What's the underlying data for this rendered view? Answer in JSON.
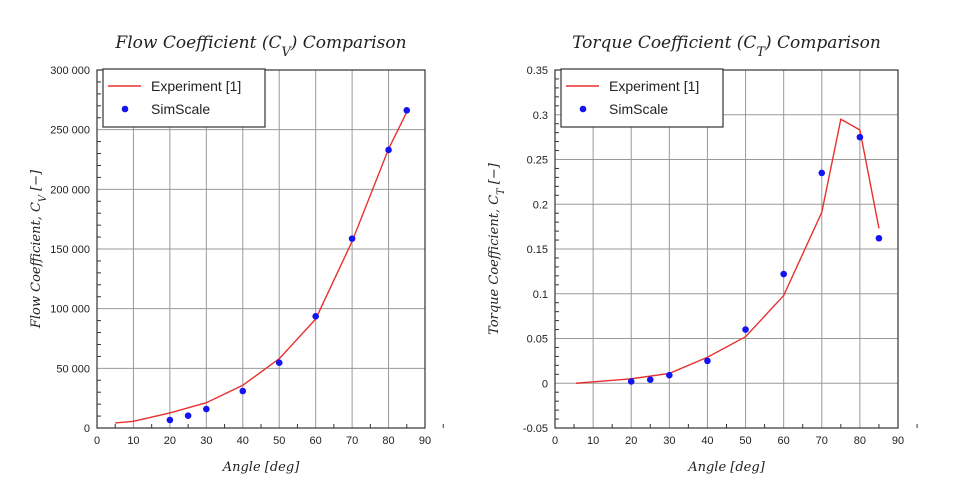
{
  "chart_data": [
    {
      "type": "line",
      "title": "Flow Coefficient (C_V) Comparison",
      "xlabel": "Angle [deg]",
      "ylabel": "Flow Coefficient, C_V [−]",
      "xlim": [
        0,
        90
      ],
      "ylim": [
        0,
        300000
      ],
      "grid": true,
      "legend": "top-left",
      "xticks": [
        "0",
        "10",
        "20",
        "30",
        "40",
        "50",
        "60",
        "70",
        "80",
        "90"
      ],
      "yticks": [
        "0",
        "50 000",
        "100 000",
        "150 000",
        "200 000",
        "250 000",
        "300 000"
      ],
      "series": [
        {
          "name": "Experiment [1]",
          "style": "line",
          "color": "#e8312f",
          "x": [
            5,
            10,
            20,
            30,
            40,
            50,
            60,
            70,
            80,
            85
          ],
          "y": [
            4200,
            5600,
            12600,
            21200,
            35800,
            58100,
            91300,
            156400,
            233800,
            264800
          ]
        },
        {
          "name": "SimScale",
          "style": "marker",
          "color": "#1414f0",
          "x": [
            20,
            25,
            30,
            40,
            50,
            60,
            70,
            80,
            85
          ],
          "y": [
            6700,
            10300,
            15900,
            31000,
            54700,
            93600,
            158700,
            233000,
            266200
          ]
        }
      ]
    },
    {
      "type": "line",
      "title": "Torque Coefficient (C_T) Comparison",
      "xlabel": "Angle [deg]",
      "ylabel": "Torque Coefficient, C_T [−]",
      "xlim": [
        0,
        90
      ],
      "ylim": [
        -0.05,
        0.35
      ],
      "grid": true,
      "legend": "top-left",
      "xticks": [
        "0",
        "10",
        "20",
        "30",
        "40",
        "50",
        "60",
        "70",
        "80",
        "90"
      ],
      "yticks": [
        "-0.05",
        "0",
        "0.05",
        "0.1",
        "0.15",
        "0.2",
        "0.25",
        "0.3",
        "0.35"
      ],
      "series": [
        {
          "name": "Experiment [1]",
          "style": "line",
          "color": "#e8312f",
          "x": [
            5.5,
            20,
            30,
            40,
            50,
            60,
            70,
            75,
            80,
            85
          ],
          "y": [
            0,
            0.005,
            0.011,
            0.029,
            0.052,
            0.098,
            0.191,
            0.295,
            0.283,
            0.173
          ]
        },
        {
          "name": "SimScale",
          "style": "marker",
          "color": "#1414f0",
          "x": [
            20,
            25,
            30,
            40,
            50,
            60,
            70,
            80,
            85
          ],
          "y": [
            0.002,
            0.004,
            0.009,
            0.025,
            0.06,
            0.122,
            0.235,
            0.275,
            0.162
          ]
        }
      ]
    }
  ]
}
